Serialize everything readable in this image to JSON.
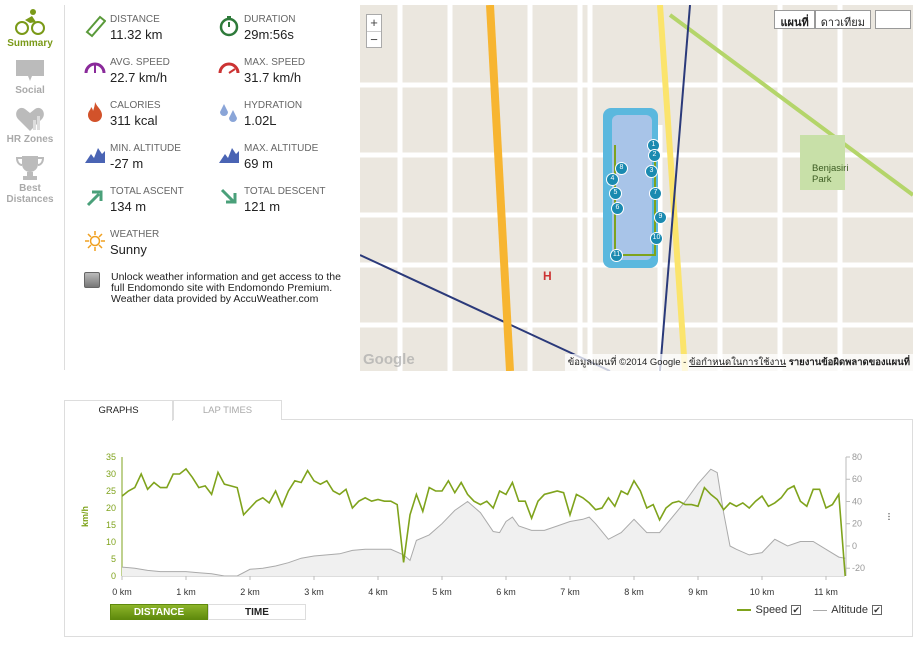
{
  "sidebar": {
    "items": [
      {
        "label": "Summary",
        "icon": "cyclist-icon",
        "active": true
      },
      {
        "label": "Social",
        "icon": "speech-bubble-icon"
      },
      {
        "label": "HR Zones",
        "icon": "heart-chart-icon"
      },
      {
        "label": "Best Distances",
        "icon": "trophy-icon"
      }
    ]
  },
  "stats": [
    {
      "label": "DISTANCE",
      "value": "11.32 km",
      "icon": "ruler-icon"
    },
    {
      "label": "DURATION",
      "value": "29m:56s",
      "icon": "stopwatch-icon"
    },
    {
      "label": "AVG. SPEED",
      "value": "22.7 km/h",
      "icon": "speedometer-icon"
    },
    {
      "label": "MAX. SPEED",
      "value": "31.7 km/h",
      "icon": "speedometer-max-icon"
    },
    {
      "label": "CALORIES",
      "value": "311 kcal",
      "icon": "flame-icon"
    },
    {
      "label": "HYDRATION",
      "value": "1.02L",
      "icon": "droplets-icon"
    },
    {
      "label": "MIN. ALTITUDE",
      "value": "-27 m",
      "icon": "mountains-icon"
    },
    {
      "label": "MAX. ALTITUDE",
      "value": "69 m",
      "icon": "mountains-icon"
    },
    {
      "label": "TOTAL ASCENT",
      "value": "134 m",
      "icon": "arrow-up-right-icon"
    },
    {
      "label": "TOTAL DESCENT",
      "value": "121 m",
      "icon": "arrow-down-right-icon"
    },
    {
      "label": "WEATHER",
      "value": "Sunny",
      "icon": "sun-icon"
    }
  ],
  "promo": {
    "line1": "Unlock weather information and get access to the full Endomondo site with Endomondo Premium.",
    "line2": "Weather data provided by AccuWeather.com"
  },
  "map": {
    "zoom_in": "+",
    "zoom_out": "−",
    "type_map": "แผนที่",
    "type_satellite": "ดาวเทียม",
    "attribution": "ข้อมูลแผนที่ ©2014 Google - ",
    "terms": "ข้อกำหนดในการใช้งาน",
    "report": "รายงานข้อผิดพลาดของแผนที่",
    "logo": "Google",
    "park_label": "Benjasiri Park",
    "hospital": "H",
    "markers": [
      "1",
      "2",
      "3",
      "4",
      "5",
      "6",
      "7",
      "8",
      "9",
      "10",
      "11"
    ]
  },
  "tabs": {
    "graphs": "GRAPHS",
    "lap_times": "LAP TIMES"
  },
  "buttons": {
    "distance": "DISTANCE",
    "time": "TIME"
  },
  "legend": {
    "speed": "Speed",
    "altitude": "Altitude",
    "check": "✔"
  },
  "colors": {
    "speed": "#7fa31c",
    "altitude": "#aaaaaa",
    "accent": "#7a9a18"
  },
  "chart_data": {
    "type": "line",
    "xlabel": "km",
    "ylabel": "km/h",
    "y2label": "m",
    "xlim": [
      0,
      11.32
    ],
    "ylim": [
      0,
      35
    ],
    "y2lim": [
      -27,
      80
    ],
    "xticks": [
      "0 km",
      "1 km",
      "2 km",
      "3 km",
      "4 km",
      "5 km",
      "6 km",
      "7 km",
      "8 km",
      "9 km",
      "10 km",
      "11 km"
    ],
    "yticks": [
      0,
      5,
      10,
      15,
      20,
      25,
      30,
      35
    ],
    "y2ticks": [
      -20,
      0,
      20,
      40,
      60,
      80
    ],
    "series": [
      {
        "name": "Speed",
        "step_km": 0.1,
        "values": [
          23.5,
          25,
          26,
          30,
          25.5,
          27.5,
          26,
          26,
          30,
          30,
          31.5,
          29,
          26,
          26.5,
          24,
          30.5,
          27,
          26.5,
          26,
          18,
          20,
          22,
          23,
          21.5,
          25,
          20.5,
          25,
          28,
          27.5,
          31,
          28,
          27,
          28,
          25,
          24,
          25.5,
          20,
          22,
          23,
          22,
          22.5,
          22,
          22,
          21,
          4,
          18,
          24,
          19,
          26,
          25,
          25,
          28,
          24.5,
          27.5,
          24,
          22,
          21,
          22,
          20,
          25,
          24,
          27.5,
          22,
          22,
          17,
          22,
          24,
          24.5,
          25,
          24.5,
          18,
          24,
          23,
          21.5,
          19.5,
          20,
          23,
          20.5,
          25,
          24,
          28,
          25,
          20,
          21,
          16.5,
          20,
          21.5,
          22,
          21,
          21,
          20.5,
          26,
          24,
          22.5,
          19.5,
          21.5,
          20.5,
          21.5,
          20,
          22,
          23.5,
          20.5,
          21.5,
          23,
          25.5,
          26.5,
          22,
          20.5,
          25.5,
          25.5,
          20,
          21,
          24,
          0
        ]
      },
      {
        "name": "Altitude",
        "x": [
          0,
          0.2,
          0.4,
          0.6,
          0.8,
          1.0,
          1.2,
          1.4,
          1.6,
          1.8,
          2.0,
          2.2,
          2.4,
          2.6,
          2.8,
          3.0,
          3.2,
          3.4,
          3.6,
          3.8,
          4.0,
          4.2,
          4.4,
          4.5,
          4.6,
          4.8,
          5.0,
          5.2,
          5.4,
          5.6,
          5.8,
          5.9,
          6.0,
          6.1,
          6.2,
          6.4,
          6.6,
          6.8,
          7.0,
          7.2,
          7.3,
          7.4,
          7.6,
          7.8,
          8.0,
          8.2,
          8.4,
          8.6,
          8.8,
          9.0,
          9.2,
          9.3,
          9.4,
          9.5,
          9.6,
          9.8,
          10.0,
          10.2,
          10.4,
          10.6,
          10.8,
          11.0,
          11.2,
          11.3
        ],
        "values": [
          -19,
          -20,
          -22,
          -23,
          -23,
          -23,
          -24,
          -25,
          -27,
          -27,
          -21,
          -20,
          -18,
          -15,
          -11,
          -9,
          -8,
          -7,
          -4,
          -3,
          -3,
          -3,
          -8,
          -13,
          5,
          10,
          20,
          32,
          40,
          30,
          13,
          12,
          22,
          26,
          18,
          14,
          14,
          18,
          22,
          24,
          26,
          20,
          6,
          12,
          24,
          12,
          12,
          26,
          40,
          56,
          69,
          66,
          30,
          0,
          -3,
          -8,
          -6,
          6,
          0,
          4,
          4,
          -3,
          -10,
          -11
        ]
      }
    ]
  }
}
